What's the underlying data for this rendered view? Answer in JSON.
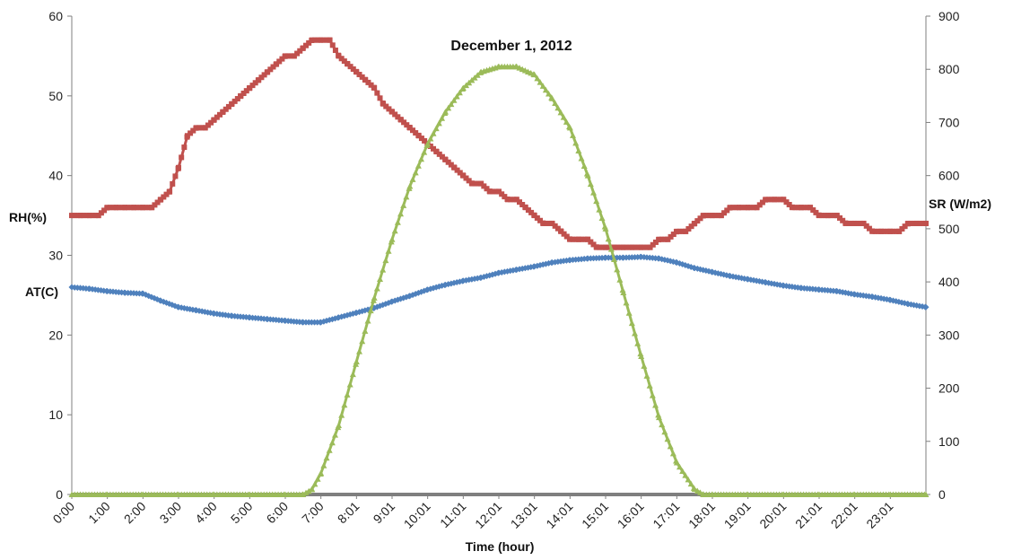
{
  "chart_data": {
    "type": "line",
    "title": "December 1, 2012",
    "xlabel": "Time (hour)",
    "x_tick_labels": [
      "0:00",
      "1:00",
      "2:00",
      "3:00",
      "4:00",
      "5:00",
      "6:00",
      "7:00",
      "8:01",
      "9:01",
      "10:01",
      "11:01",
      "12:01",
      "13:01",
      "14:01",
      "15:01",
      "16:01",
      "17:01",
      "18:01",
      "19:01",
      "20:01",
      "21:01",
      "22:01",
      "23:01"
    ],
    "x_hours": [
      0,
      1,
      2,
      3,
      4,
      5,
      6,
      7,
      8,
      9,
      10,
      11,
      12,
      13,
      14,
      15,
      16,
      17,
      18,
      19,
      20,
      21,
      22,
      23
    ],
    "xlim": [
      0,
      24
    ],
    "y_left": {
      "ylim": [
        0,
        60
      ],
      "ticks": [
        0,
        10,
        20,
        30,
        40,
        50,
        60
      ],
      "labels": [
        "RH(%)",
        "AT(C)"
      ]
    },
    "y_right": {
      "ylim": [
        0,
        900
      ],
      "ticks": [
        0,
        100,
        200,
        300,
        400,
        500,
        600,
        700,
        800,
        900
      ],
      "label": "SR (W/m2)"
    },
    "grid": false,
    "series": [
      {
        "label": "RH(%)",
        "axis": "left",
        "color": "#c0504d",
        "marker": "square",
        "x": [
          0,
          0.25,
          0.5,
          0.75,
          1,
          1.25,
          1.5,
          1.75,
          2,
          2.25,
          2.5,
          2.75,
          3,
          3.25,
          3.5,
          3.75,
          4,
          4.25,
          4.5,
          4.75,
          5,
          5.25,
          5.5,
          5.75,
          6,
          6.25,
          6.5,
          6.75,
          7,
          7.25,
          7.5,
          7.75,
          8,
          8.25,
          8.5,
          8.75,
          9,
          9.25,
          9.5,
          9.75,
          10,
          10.25,
          10.5,
          10.75,
          11,
          11.25,
          11.5,
          11.75,
          12,
          12.25,
          12.5,
          12.75,
          13,
          13.25,
          13.5,
          13.75,
          14,
          14.25,
          14.5,
          14.75,
          15,
          15.25,
          15.5,
          15.75,
          16,
          16.25,
          16.5,
          16.75,
          17,
          17.25,
          17.5,
          17.75,
          18,
          18.25,
          18.5,
          18.75,
          19,
          19.25,
          19.5,
          19.75,
          20,
          20.25,
          20.5,
          20.75,
          21,
          21.25,
          21.5,
          21.75,
          22,
          22.25,
          22.5,
          22.75,
          23,
          23.25,
          23.5,
          23.75,
          24
        ],
        "y": [
          35,
          35,
          35,
          35,
          36,
          36,
          36,
          36,
          36,
          36,
          37,
          38,
          41,
          45,
          46,
          46,
          47,
          48,
          49,
          50,
          51,
          52,
          53,
          54,
          55,
          55,
          56,
          57,
          57,
          57,
          55,
          54,
          53,
          52,
          51,
          49,
          48,
          47,
          46,
          45,
          44,
          43,
          42,
          41,
          40,
          39,
          39,
          38,
          38,
          37,
          37,
          36,
          35,
          34,
          34,
          33,
          32,
          32,
          32,
          31,
          31,
          31,
          31,
          31,
          31,
          31,
          32,
          32,
          33,
          33,
          34,
          35,
          35,
          35,
          36,
          36,
          36,
          36,
          37,
          37,
          37,
          36,
          36,
          36,
          35,
          35,
          35,
          34,
          34,
          34,
          33,
          33,
          33,
          33,
          34,
          34,
          34
        ]
      },
      {
        "label": "AT(C)",
        "axis": "left",
        "color": "#4f81bd",
        "marker": "diamond",
        "x": [
          0,
          0.5,
          1,
          1.5,
          2,
          2.5,
          3,
          3.5,
          4,
          4.5,
          5,
          5.5,
          6,
          6.5,
          7,
          7.5,
          8,
          8.5,
          9,
          9.5,
          10,
          10.5,
          11,
          11.5,
          12,
          12.5,
          13,
          13.5,
          14,
          14.5,
          15,
          15.5,
          16,
          16.5,
          17,
          17.5,
          18,
          18.5,
          19,
          19.5,
          20,
          20.5,
          21,
          21.5,
          22,
          22.5,
          23,
          23.5,
          24
        ],
        "y": [
          26,
          25.8,
          25.5,
          25.3,
          25.2,
          24.3,
          23.5,
          23.1,
          22.7,
          22.4,
          22.2,
          22,
          21.8,
          21.6,
          21.6,
          22.2,
          22.8,
          23.4,
          24.2,
          24.9,
          25.7,
          26.3,
          26.8,
          27.2,
          27.8,
          28.2,
          28.6,
          29.1,
          29.4,
          29.6,
          29.7,
          29.7,
          29.8,
          29.6,
          29.1,
          28.4,
          27.9,
          27.4,
          27.0,
          26.6,
          26.2,
          25.9,
          25.7,
          25.5,
          25.1,
          24.8,
          24.4,
          23.9,
          23.5
        ]
      },
      {
        "label": "SR (W/m2)",
        "axis": "right",
        "color": "#9bbb59",
        "marker": "triangle",
        "x": [
          0,
          1,
          2,
          3,
          4,
          5,
          6,
          6.5,
          6.75,
          7,
          7.5,
          8,
          8.5,
          9,
          9.5,
          10,
          10.5,
          11,
          11.5,
          12,
          12.5,
          13,
          13.5,
          14,
          14.5,
          15,
          15.5,
          16,
          16.5,
          17,
          17.5,
          17.75,
          18,
          19,
          20,
          21,
          22,
          23,
          24
        ],
        "y": [
          0,
          0,
          0,
          0,
          0,
          0,
          0,
          0,
          10,
          40,
          130,
          250,
          370,
          480,
          580,
          660,
          720,
          765,
          795,
          805,
          805,
          790,
          745,
          690,
          600,
          500,
          380,
          260,
          145,
          60,
          10,
          0,
          0,
          0,
          0,
          0,
          0,
          0,
          0
        ]
      }
    ]
  }
}
